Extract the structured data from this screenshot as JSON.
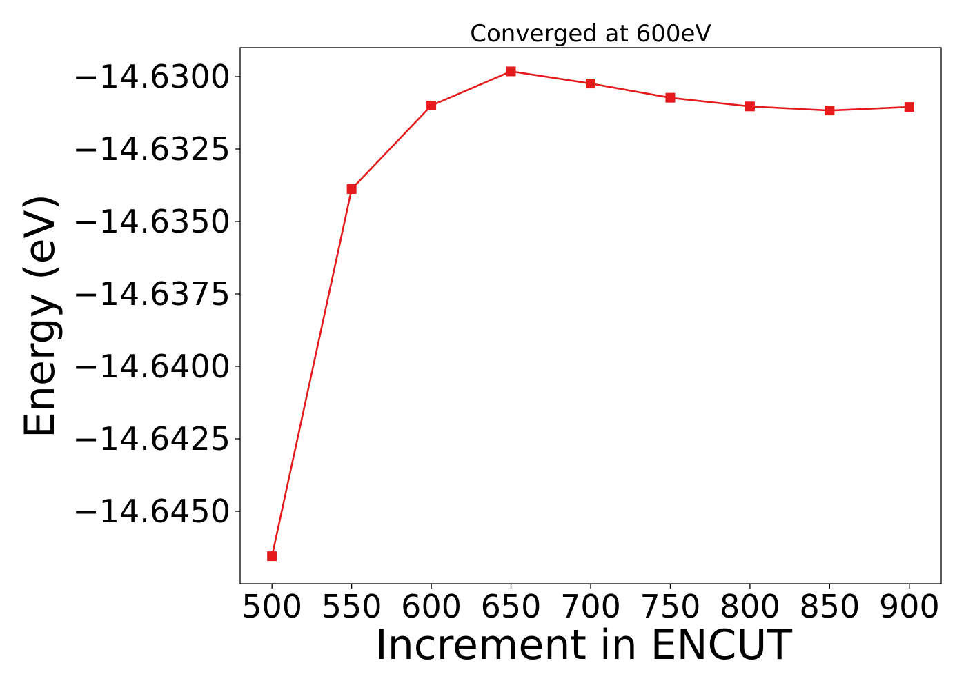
{
  "chart_data": {
    "type": "line",
    "title": "Converged at 600eV",
    "xlabel": "Increment in ENCUT",
    "ylabel": "Energy (eV)",
    "x": [
      500,
      550,
      600,
      650,
      700,
      750,
      800,
      850,
      900
    ],
    "series": [
      {
        "values": [
          -14.64655,
          -14.63388,
          -14.631,
          -14.62982,
          -14.63024,
          -14.63073,
          -14.63103,
          -14.63117,
          -14.63105
        ],
        "color": "#e41a1c",
        "marker": "square"
      }
    ],
    "xticks": [
      500,
      550,
      600,
      650,
      700,
      750,
      800,
      850,
      900
    ],
    "yticks": [
      -14.645,
      -14.6425,
      -14.64,
      -14.6375,
      -14.635,
      -14.6325,
      -14.63
    ],
    "ytick_labels": [
      "−14.6450",
      "−14.6425",
      "−14.6400",
      "−14.6375",
      "−14.6350",
      "−14.6325",
      "−14.6300"
    ],
    "xlim": [
      480,
      920
    ],
    "ylim": [
      -14.6475,
      -14.629
    ],
    "grid": false,
    "legend": "none"
  }
}
